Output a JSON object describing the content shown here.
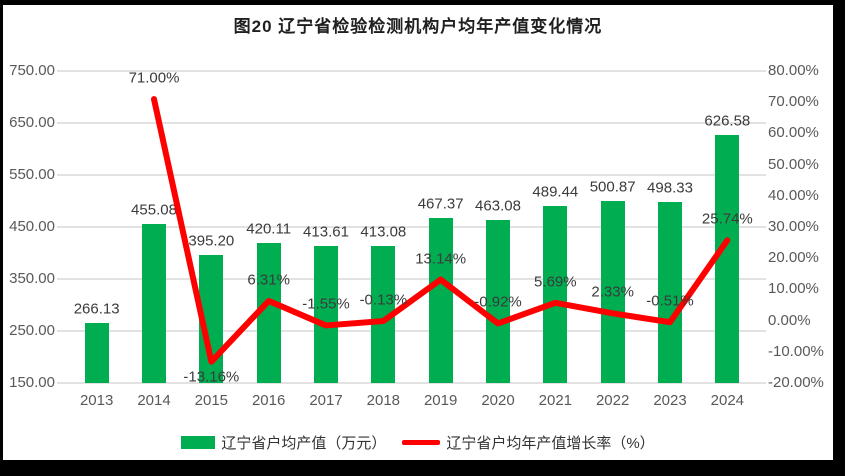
{
  "frame": {
    "title": "图20 辽宁省检验检测机构户均年产值变化情况"
  },
  "colors": {
    "bar_green": "#00AE51",
    "line_red": "#FF0000",
    "gridline": "#E2E2E2",
    "axis_text": "#595959",
    "data_label_text": "#3B3B3B",
    "background": "#FFFFFF",
    "frame_border": "#000000"
  },
  "chart_data": {
    "type": "combo_bar_line",
    "title": "图20 辽宁省检验检测机构户均年产值变化情况",
    "xlabel": "",
    "ylabel": "",
    "categories": [
      "2013",
      "2014",
      "2015",
      "2016",
      "2017",
      "2018",
      "2019",
      "2020",
      "2021",
      "2022",
      "2023",
      "2024"
    ],
    "series": [
      {
        "name": "辽宁省户均产值（万元）",
        "type": "bar",
        "axis": "left",
        "color": "#00AE51",
        "values": [
          266.13,
          455.08,
          395.2,
          420.11,
          413.61,
          413.08,
          467.37,
          463.08,
          489.44,
          500.87,
          498.33,
          626.58
        ],
        "labels": [
          "266.13",
          "455.08",
          "395.20",
          "420.11",
          "413.61",
          "413.08",
          "467.37",
          "463.08",
          "489.44",
          "500.87",
          "498.33",
          "626.58"
        ]
      },
      {
        "name": "辽宁省户均年产值增长率（%）",
        "type": "line",
        "axis": "right",
        "color": "#FF0000",
        "values": [
          null,
          71.0,
          -13.16,
          6.31,
          -1.55,
          -0.13,
          13.14,
          -0.92,
          5.69,
          2.33,
          -0.51,
          25.74
        ],
        "labels": [
          "",
          "71.00%",
          "-13.16%",
          "6.31%",
          "-1.55%",
          "-0.13%",
          "13.14%",
          "-0.92%",
          "5.69%",
          "2.33%",
          "-0.51%",
          "25.74%"
        ]
      }
    ],
    "left_axis": {
      "min": 150,
      "max": 750,
      "ticks": [
        "750.00",
        "650.00",
        "550.00",
        "450.00",
        "350.00",
        "250.00",
        "150.00"
      ]
    },
    "right_axis": {
      "min": -20,
      "max": 80,
      "ticks": [
        "80.00%",
        "70.00%",
        "60.00%",
        "50.00%",
        "40.00%",
        "30.00%",
        "20.00%",
        "10.00%",
        "0.00%",
        "-10.00%",
        "-20.00%"
      ]
    },
    "grid": true,
    "legend_position": "bottom"
  },
  "legend": {
    "items": [
      {
        "label": "辽宁省户均产值（万元）",
        "swatch": "bar",
        "color": "#00AE51"
      },
      {
        "label": "辽宁省户均年产值增长率（%）",
        "swatch": "line",
        "color": "#FF0000"
      }
    ]
  }
}
